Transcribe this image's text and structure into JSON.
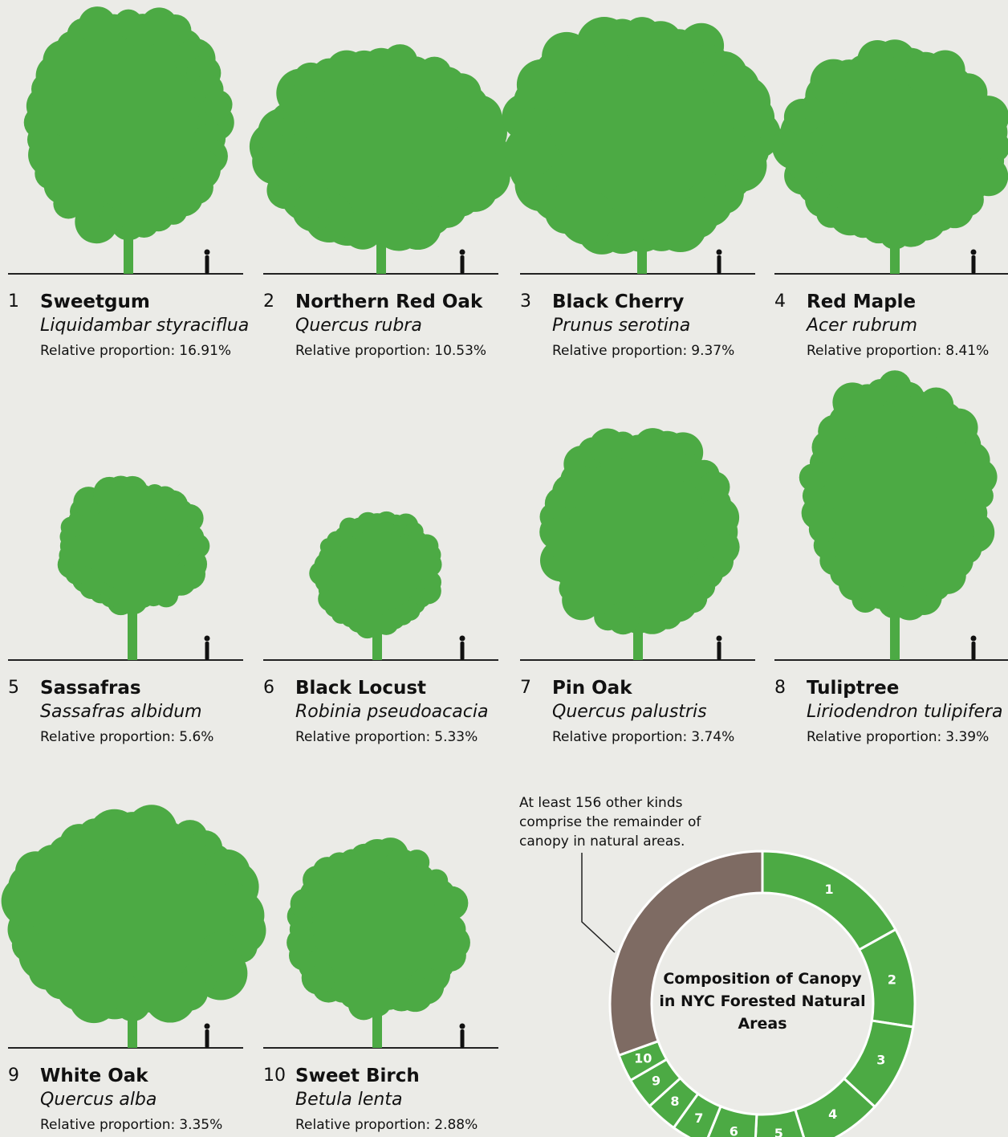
{
  "trees": [
    {
      "name": "Sweetgum",
      "scientific": "Liquidambar styraciflua"
    },
    {
      "name": "Northern Red Oak",
      "scientific": "Quercus rubra"
    },
    {
      "name": "Black Cherry",
      "scientific": "Prunus serotina"
    },
    {
      "name": "Red Maple",
      "scientific": "Acer rubrum"
    },
    {
      "name": "Sassafras",
      "scientific": "Sassafras albidum"
    },
    {
      "name": "Black Locust",
      "scientific": "Robinia pseudoacacia"
    },
    {
      "name": "Pin Oak",
      "scientific": "Quercus palustris"
    },
    {
      "name": "Tuliptree",
      "scientific": "Liriodendron tulipifera"
    },
    {
      "name": "White Oak",
      "scientific": "Quercus alba"
    },
    {
      "name": "Sweet Birch",
      "scientific": "Betula lenta"
    }
  ],
  "proportion_label": "Relative proportion:",
  "chart_data": {
    "type": "pie",
    "donut": true,
    "title": "Composition of Canopy in NYC Forested Natural Areas",
    "annotation": "At least 156 other kinds comprise the remainder of canopy in natural areas.",
    "categories": [
      "1",
      "2",
      "3",
      "4",
      "5",
      "6",
      "7",
      "8",
      "9",
      "10",
      null
    ],
    "values": [
      16.91,
      10.53,
      9.37,
      8.41,
      5.6,
      5.33,
      3.74,
      3.39,
      3.35,
      2.88,
      30.49
    ],
    "value_labels": [
      "16.91%",
      "10.53%",
      "9.37%",
      "8.41%",
      "5.6%",
      "5.33%",
      "3.74%",
      "3.39%",
      "3.35%",
      "2.88%",
      null
    ],
    "colors": [
      "#4caa44",
      "#4caa44",
      "#4caa44",
      "#4caa44",
      "#4caa44",
      "#4caa44",
      "#4caa44",
      "#4caa44",
      "#4caa44",
      "#4caa44",
      "#7e6b63"
    ]
  }
}
